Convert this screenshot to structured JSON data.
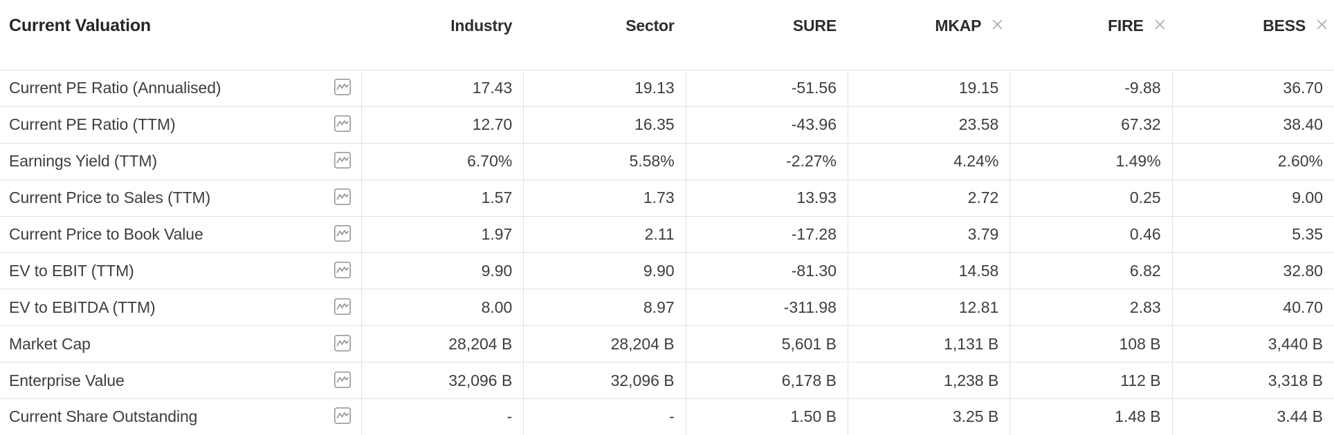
{
  "table": {
    "title": "Current Valuation",
    "columns": [
      {
        "label": "Industry",
        "closable": false
      },
      {
        "label": "Sector",
        "closable": false
      },
      {
        "label": "SURE",
        "closable": false
      },
      {
        "label": "MKAP",
        "closable": true
      },
      {
        "label": "FIRE",
        "closable": true
      },
      {
        "label": "BESS",
        "closable": true
      }
    ],
    "rows": [
      {
        "label": "Current PE Ratio (Annualised)",
        "values": [
          "17.43",
          "19.13",
          "-51.56",
          "19.15",
          "-9.88",
          "36.70"
        ]
      },
      {
        "label": "Current PE Ratio (TTM)",
        "values": [
          "12.70",
          "16.35",
          "-43.96",
          "23.58",
          "67.32",
          "38.40"
        ]
      },
      {
        "label": "Earnings Yield (TTM)",
        "values": [
          "6.70%",
          "5.58%",
          "-2.27%",
          "4.24%",
          "1.49%",
          "2.60%"
        ]
      },
      {
        "label": "Current Price to Sales (TTM)",
        "values": [
          "1.57",
          "1.73",
          "13.93",
          "2.72",
          "0.25",
          "9.00"
        ]
      },
      {
        "label": "Current Price to Book Value",
        "values": [
          "1.97",
          "2.11",
          "-17.28",
          "3.79",
          "0.46",
          "5.35"
        ]
      },
      {
        "label": "EV to EBIT (TTM)",
        "values": [
          "9.90",
          "9.90",
          "-81.30",
          "14.58",
          "6.82",
          "32.80"
        ]
      },
      {
        "label": "EV to EBITDA (TTM)",
        "values": [
          "8.00",
          "8.97",
          "-311.98",
          "12.81",
          "2.83",
          "40.70"
        ]
      },
      {
        "label": "Market Cap",
        "values": [
          "28,204 B",
          "28,204 B",
          "5,601 B",
          "1,131 B",
          "108 B",
          "3,440 B"
        ]
      },
      {
        "label": "Enterprise Value",
        "values": [
          "32,096 B",
          "32,096 B",
          "6,178 B",
          "1,238 B",
          "112 B",
          "3,318 B"
        ]
      },
      {
        "label": "Current Share Outstanding",
        "values": [
          "-",
          "-",
          "1.50 B",
          "3.25 B",
          "1.48 B",
          "3.44 B"
        ]
      }
    ],
    "icons": {
      "row_icon": "sparkline-chart-icon",
      "close_icon": "close-icon"
    },
    "colors": {
      "header_text": "#2d2d2d",
      "body_text": "#3d3d3d",
      "border": "#e2e2e2",
      "icon_stroke": "#8f8f8f",
      "close_stroke": "#a0a0a0"
    }
  }
}
